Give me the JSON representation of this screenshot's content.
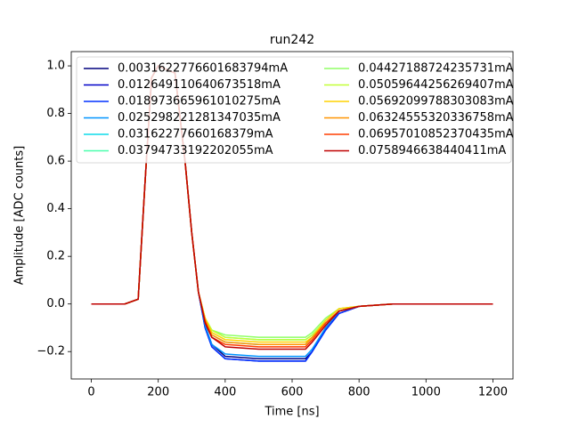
{
  "chart_data": {
    "type": "line",
    "title": "run242",
    "x_label": "Time [ns]",
    "y_label": "Amplitude [ADC counts]",
    "x": [
      0,
      100,
      140,
      160,
      180,
      200,
      250,
      280,
      300,
      320,
      340,
      360,
      400,
      500,
      600,
      640,
      660,
      700,
      740,
      800,
      900,
      1000,
      1200
    ],
    "xlim": [
      -60,
      1260
    ],
    "xticks": [
      0,
      200,
      400,
      600,
      800,
      1000,
      1200
    ],
    "ylim": [
      -0.315,
      1.06
    ],
    "yticks": [
      {
        "value": -0.2,
        "label": "−0.2"
      },
      {
        "value": 0,
        "label": "0.0"
      },
      0.2,
      0.4,
      0.6,
      0.8,
      {
        "value": 1.0,
        "label": "1.0"
      }
    ],
    "legend": "upper left",
    "legend_columns": 2,
    "series": [
      {
        "name": "0.0031622776601683794mA",
        "color": "#00007f",
        "values": [
          0,
          0,
          0.02,
          0.5,
          0.95,
          1.0,
          0.97,
          0.6,
          0.3,
          0.05,
          -0.09,
          -0.17,
          -0.22,
          -0.23,
          -0.23,
          -0.23,
          -0.2,
          -0.1,
          -0.03,
          -0.01,
          0,
          0,
          0
        ]
      },
      {
        "name": "0.012649110640673518mA",
        "color": "#0000c8",
        "values": [
          0,
          0,
          0.02,
          0.5,
          0.95,
          1.0,
          0.97,
          0.6,
          0.3,
          0.05,
          -0.1,
          -0.18,
          -0.23,
          -0.24,
          -0.24,
          -0.24,
          -0.2,
          -0.11,
          -0.04,
          -0.01,
          0,
          0,
          0
        ]
      },
      {
        "name": "0.018973665961010275mA",
        "color": "#0030ff",
        "values": [
          0,
          0,
          0.02,
          0.5,
          0.95,
          1.0,
          0.97,
          0.6,
          0.3,
          0.05,
          -0.1,
          -0.18,
          -0.23,
          -0.24,
          -0.24,
          -0.24,
          -0.2,
          -0.11,
          -0.04,
          -0.01,
          0,
          0,
          0
        ]
      },
      {
        "name": "0.025298221281347035mA",
        "color": "#0094ff",
        "values": [
          0,
          0,
          0.02,
          0.5,
          0.95,
          1.0,
          0.97,
          0.6,
          0.3,
          0.05,
          -0.09,
          -0.17,
          -0.21,
          -0.22,
          -0.22,
          -0.22,
          -0.19,
          -0.1,
          -0.03,
          -0.01,
          0,
          0,
          0
        ]
      },
      {
        "name": "0.03162277660168379mA",
        "color": "#0ddcea",
        "values": [
          0,
          0,
          0.02,
          0.5,
          0.95,
          1.0,
          0.97,
          0.6,
          0.3,
          0.05,
          -0.07,
          -0.13,
          -0.16,
          -0.17,
          -0.17,
          -0.17,
          -0.14,
          -0.08,
          -0.03,
          -0.01,
          0,
          0,
          0
        ]
      },
      {
        "name": "0.03794733192202055mA",
        "color": "#4affad",
        "values": [
          0,
          0,
          0.02,
          0.5,
          0.95,
          1.0,
          0.97,
          0.6,
          0.3,
          0.05,
          -0.06,
          -0.11,
          -0.14,
          -0.15,
          -0.15,
          -0.15,
          -0.13,
          -0.07,
          -0.02,
          -0.01,
          0,
          0,
          0
        ]
      },
      {
        "name": "0.04427188724235731mA",
        "color": "#90ff66",
        "values": [
          0,
          0,
          0.02,
          0.5,
          0.95,
          1.0,
          0.97,
          0.6,
          0.3,
          0.05,
          -0.06,
          -0.11,
          -0.13,
          -0.14,
          -0.14,
          -0.14,
          -0.12,
          -0.06,
          -0.02,
          -0.01,
          0,
          0,
          0
        ]
      },
      {
        "name": "0.05059644256269407mA",
        "color": "#c1ff36",
        "values": [
          0,
          0,
          0.02,
          0.5,
          0.95,
          1.0,
          0.97,
          0.6,
          0.3,
          0.05,
          -0.06,
          -0.11,
          -0.14,
          -0.15,
          -0.15,
          -0.15,
          -0.13,
          -0.07,
          -0.02,
          -0.01,
          0,
          0,
          0
        ]
      },
      {
        "name": "0.05692099788303083mA",
        "color": "#ffd200",
        "values": [
          0,
          0,
          0.02,
          0.5,
          0.95,
          1.0,
          0.97,
          0.6,
          0.3,
          0.05,
          -0.06,
          -0.12,
          -0.15,
          -0.16,
          -0.16,
          -0.16,
          -0.14,
          -0.07,
          -0.02,
          -0.01,
          0,
          0,
          0
        ]
      },
      {
        "name": "0.06324555320336758mA",
        "color": "#ff9400",
        "values": [
          0,
          0,
          0.02,
          0.5,
          0.95,
          1.0,
          0.97,
          0.6,
          0.3,
          0.05,
          -0.07,
          -0.13,
          -0.16,
          -0.17,
          -0.17,
          -0.17,
          -0.14,
          -0.08,
          -0.03,
          -0.01,
          0,
          0,
          0
        ]
      },
      {
        "name": "0.06957010852370435mA",
        "color": "#ff3f00",
        "values": [
          0,
          0,
          0.02,
          0.5,
          0.95,
          1.0,
          0.97,
          0.6,
          0.3,
          0.05,
          -0.07,
          -0.14,
          -0.17,
          -0.18,
          -0.18,
          -0.18,
          -0.15,
          -0.08,
          -0.03,
          -0.01,
          0,
          0,
          0
        ]
      },
      {
        "name": "0.0758946638440411mA",
        "color": "#bf0000",
        "values": [
          0,
          0,
          0.02,
          0.5,
          0.95,
          1.0,
          0.97,
          0.6,
          0.3,
          0.05,
          -0.08,
          -0.14,
          -0.18,
          -0.19,
          -0.19,
          -0.19,
          -0.16,
          -0.09,
          -0.03,
          -0.01,
          0,
          0,
          0
        ]
      }
    ]
  }
}
